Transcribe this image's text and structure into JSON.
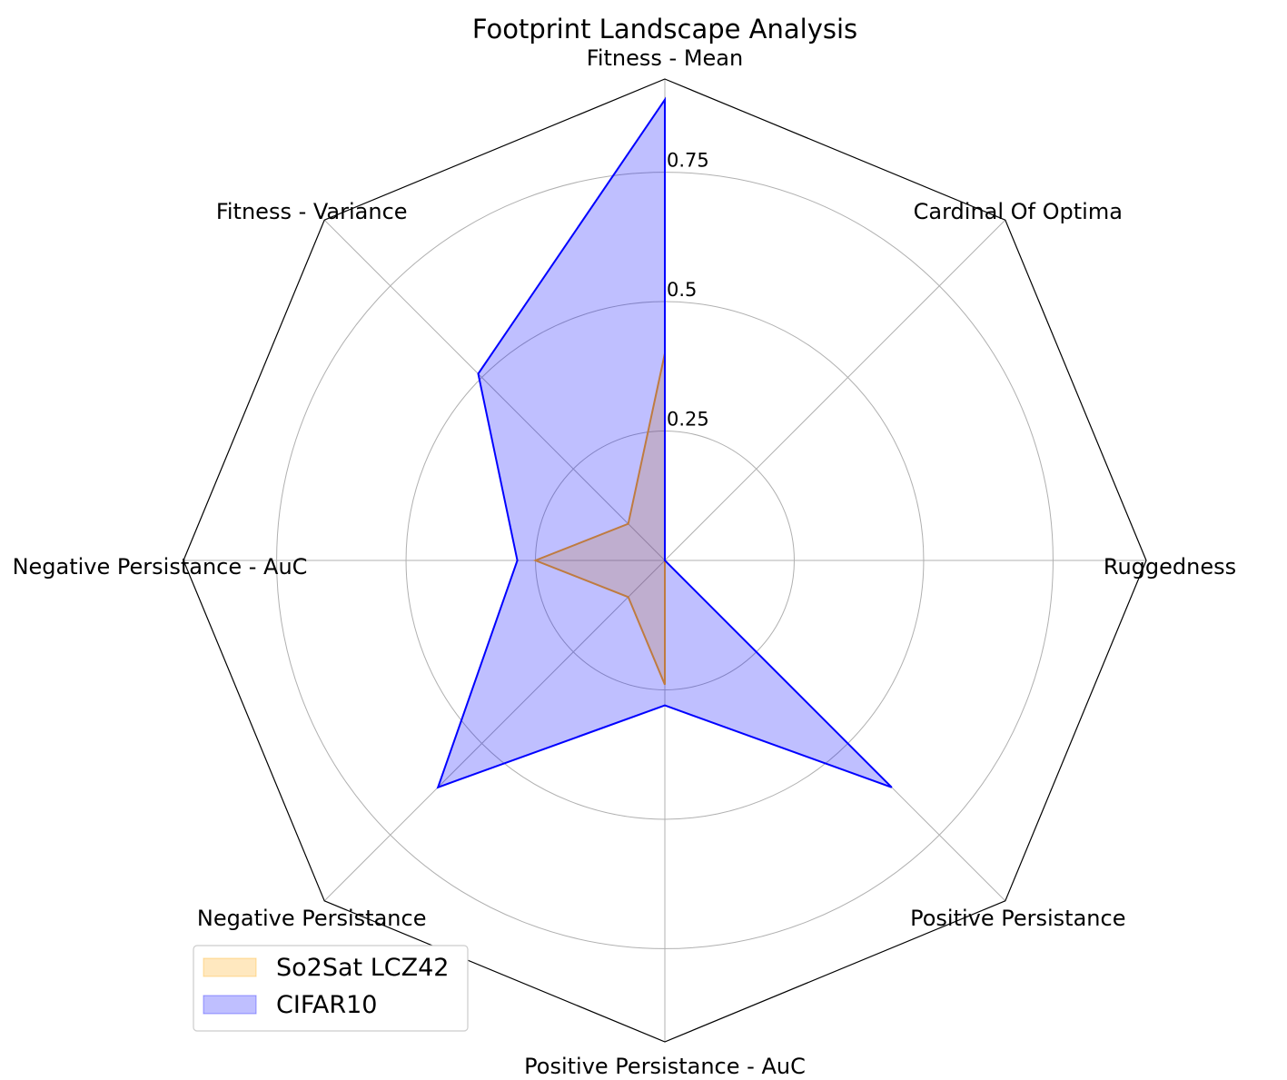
{
  "chart_data": {
    "type": "radar",
    "title": "Footprint Landscape Analysis",
    "axes": [
      "Fitness - Mean",
      "Cardinal Of Optima",
      "Ruggedness",
      "Positive Persistance",
      "Positive Persistance - AuC",
      "Negative Persistance",
      "Negative Persistance - AuC",
      "Fitness - Variance"
    ],
    "r_ticks": [
      0.25,
      0.5,
      0.75
    ],
    "r_tick_labels": [
      "0.25",
      "0.5",
      "0.75"
    ],
    "r_range": [
      0,
      0.93
    ],
    "grid": true,
    "legend_position": "bottom-left",
    "series": [
      {
        "name": "So2Sat LCZ42",
        "values": [
          0.4,
          0.0,
          0.0,
          0.0,
          0.24,
          0.1,
          0.25,
          0.1
        ],
        "color": "#FFA500"
      },
      {
        "name": "CIFAR10",
        "values": [
          0.89,
          0.0,
          0.0,
          0.62,
          0.28,
          0.62,
          0.285,
          0.51
        ],
        "color": "#0000FF"
      }
    ]
  }
}
